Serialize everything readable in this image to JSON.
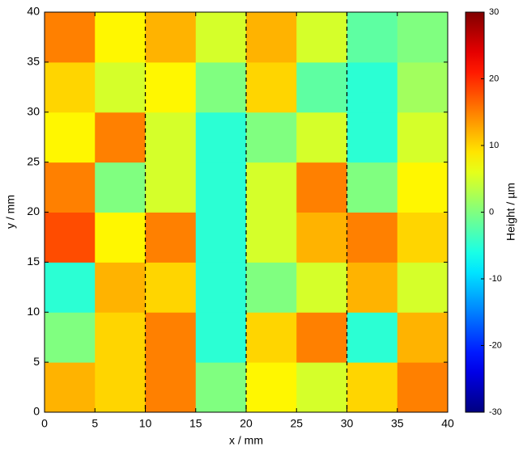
{
  "chart_data": {
    "type": "heatmap",
    "xlabel": "x / mm",
    "ylabel": "y / mm",
    "xlim": [
      0,
      40
    ],
    "ylim": [
      0,
      40
    ],
    "xticks": [
      0,
      5,
      10,
      15,
      20,
      25,
      30,
      35,
      40
    ],
    "yticks": [
      0,
      5,
      10,
      15,
      20,
      25,
      30,
      35,
      40
    ],
    "xbins": [
      0,
      5,
      10,
      15,
      20,
      25,
      30,
      35,
      40
    ],
    "ybins": [
      0,
      5,
      10,
      15,
      20,
      25,
      30,
      35,
      40
    ],
    "z": [
      [
        12,
        10,
        15,
        0,
        8,
        5,
        10,
        15
      ],
      [
        0,
        10,
        15,
        -5,
        10,
        15,
        -5,
        12
      ],
      [
        -5,
        12,
        10,
        -5,
        0,
        5,
        12,
        5
      ],
      [
        18,
        8,
        15,
        -5,
        5,
        12,
        15,
        10
      ],
      [
        15,
        0,
        5,
        -5,
        5,
        15,
        0,
        8
      ],
      [
        8,
        15,
        5,
        -5,
        0,
        5,
        -5,
        5
      ],
      [
        10,
        5,
        8,
        0,
        10,
        -2,
        -5,
        2
      ],
      [
        15,
        8,
        12,
        5,
        12,
        5,
        -2,
        0
      ]
    ],
    "vlines": [
      10,
      20,
      30
    ],
    "colormap": "jet",
    "colorbar": {
      "label": "Height / µm",
      "clim": [
        -30,
        30
      ],
      "ticks": [
        30,
        20,
        10,
        0,
        -10,
        -20,
        -30
      ]
    }
  }
}
